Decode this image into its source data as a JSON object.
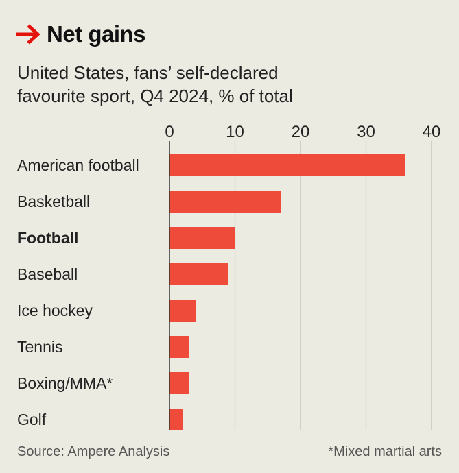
{
  "header": {
    "title": "Net gains",
    "subtitle_line1": "United States, fans’ self-declared",
    "subtitle_line2": "favourite sport, Q4 2024, % of total",
    "arrow_icon": "right-arrow-icon"
  },
  "footer": {
    "source": "Source: Ampere Analysis",
    "footnote": "*Mixed martial arts"
  },
  "colors": {
    "bar": "#ef4b3b",
    "arrow": "#e3120b",
    "grid": "#bdbdb3",
    "axis": "#333333",
    "background": "#ecebe1"
  },
  "chart_data": {
    "type": "bar",
    "orientation": "horizontal",
    "title": "Net gains",
    "subtitle": "United States, fans’ self-declared favourite sport, Q4 2024, % of total",
    "xlabel": "",
    "ylabel": "",
    "xlim": [
      0,
      40
    ],
    "xticks": [
      0,
      10,
      20,
      30,
      40
    ],
    "xtick_labels": [
      "0",
      "10",
      "20",
      "30",
      "40"
    ],
    "axis_position": "top",
    "grid": true,
    "categories": [
      "American football",
      "Basketball",
      "Football",
      "Baseball",
      "Ice hockey",
      "Tennis",
      "Boxing/MMA*",
      "Golf"
    ],
    "values": [
      36,
      17,
      10,
      9,
      4,
      3,
      3,
      2
    ],
    "highlighted_category": "Football"
  }
}
